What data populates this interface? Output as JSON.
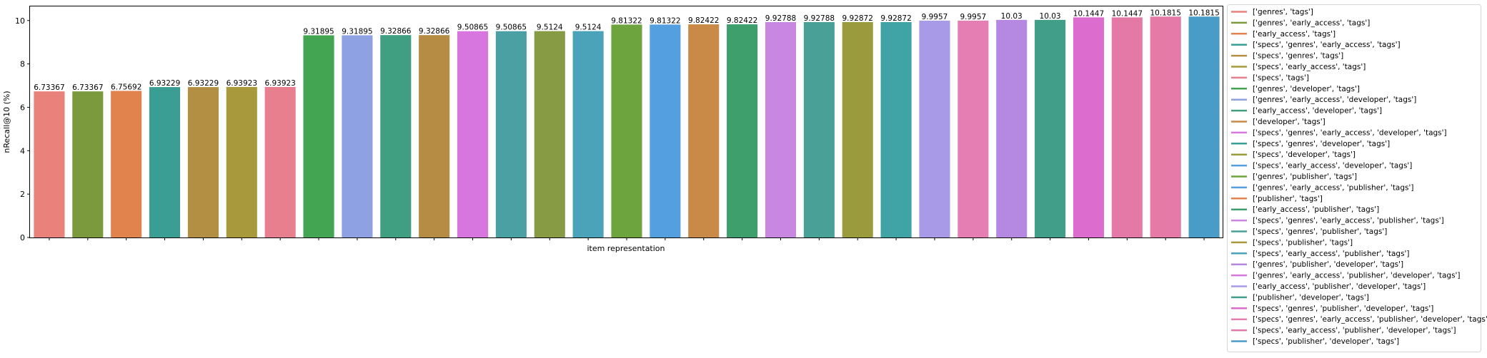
{
  "chart_data": {
    "type": "bar",
    "title": "",
    "xlabel": "item representation",
    "ylabel": "nRecall@10 (%)",
    "ylim": [
      0,
      10.65
    ],
    "yticks": [
      0,
      2,
      4,
      6,
      8,
      10
    ],
    "grid": false,
    "legend_position": "right, outside plot",
    "categories": [
      "['genres', 'tags']",
      "['genres', 'early_access', 'tags']",
      "['early_access', 'tags']",
      "['specs', 'genres', 'early_access', 'tags']",
      "['specs', 'genres', 'tags']",
      "['specs', 'early_access', 'tags']",
      "['specs', 'tags']",
      "['genres', 'developer', 'tags']",
      "['genres', 'early_access', 'developer', 'tags']",
      "['early_access', 'developer', 'tags']",
      "['developer', 'tags']",
      "['specs', 'genres', 'early_access', 'developer', 'tags']",
      "['specs', 'genres', 'developer', 'tags']",
      "['specs', 'developer', 'tags']",
      "['specs', 'early_access', 'developer', 'tags']",
      "['genres', 'publisher', 'tags']",
      "['genres', 'early_access', 'publisher', 'tags']",
      "['publisher', 'tags']",
      "['early_access', 'publisher', 'tags']",
      "['specs', 'genres', 'early_access', 'publisher', 'tags']",
      "['specs', 'genres', 'publisher', 'tags']",
      "['specs', 'publisher', 'tags']",
      "['specs', 'early_access', 'publisher', 'tags']",
      "['genres', 'publisher', 'developer', 'tags']",
      "['genres', 'early_access', 'publisher', 'developer', 'tags']",
      "['early_access', 'publisher', 'developer', 'tags']",
      "['publisher', 'developer', 'tags']",
      "['specs', 'genres', 'publisher', 'developer', 'tags']",
      "['specs', 'genres', 'early_access', 'publisher', 'developer', 'tags']",
      "['specs', 'early_access', 'publisher', 'developer', 'tags']",
      "['specs', 'publisher', 'developer', 'tags']"
    ],
    "values": [
      6.73367,
      6.73367,
      6.75692,
      6.93229,
      6.93229,
      6.93923,
      6.93923,
      9.31895,
      9.31895,
      9.32866,
      9.32866,
      9.50865,
      9.50865,
      9.5124,
      9.5124,
      9.81322,
      9.81322,
      9.82422,
      9.82422,
      9.92788,
      9.92788,
      9.92872,
      9.92872,
      9.9957,
      9.9957,
      10.03,
      10.03,
      10.1447,
      10.1447,
      10.1815,
      10.1815
    ],
    "data_labels": [
      "6.73367",
      "6.73367",
      "6.75692",
      "6.93229",
      "6.93229",
      "6.93923",
      "6.93923",
      "9.31895",
      "9.31895",
      "9.32866",
      "9.32866",
      "9.50865",
      "9.50865",
      "9.5124",
      "9.5124",
      "9.81322",
      "9.81322",
      "9.82422",
      "9.82422",
      "9.92788",
      "9.92788",
      "9.92872",
      "9.92872",
      "9.9957",
      "9.9957",
      "10.03",
      "10.03",
      "10.1447",
      "10.1447",
      "10.1815",
      "10.1815"
    ],
    "bar_colors": [
      "#e8827b",
      "#7b9a3d",
      "#e0834d",
      "#3a9e94",
      "#b28f42",
      "#a89a3c",
      "#e87f8f",
      "#43a452",
      "#8da1e3",
      "#3f9f80",
      "#b68c44",
      "#d876e0",
      "#4aa0a3",
      "#879b44",
      "#4aa3b8",
      "#6ea43d",
      "#549fe0",
      "#c98a47",
      "#3e9e6c",
      "#c887e0",
      "#48a097",
      "#9a9b3d",
      "#40a3a5",
      "#a99ae8",
      "#e57eb2",
      "#b589e2",
      "#409e89",
      "#dd6ccf",
      "#e479a8",
      "#e57aa7",
      "#4a9cc8"
    ],
    "legend_colors": [
      "#e8827b",
      "#7b9a3d",
      "#e0834d",
      "#3a9e94",
      "#b28f42",
      "#a89a3c",
      "#e87f8f",
      "#43a452",
      "#8da1e3",
      "#3f9f80",
      "#c98a47",
      "#d876e0",
      "#3a9e94",
      "#9a9b3d",
      "#549fe0",
      "#6ea43d",
      "#549fe0",
      "#e0834d",
      "#3e9e6c",
      "#c887e0",
      "#48a097",
      "#a89a3c",
      "#4aa3b8",
      "#b589e2",
      "#d876e0",
      "#a99ae8",
      "#409e89",
      "#dd6ccf",
      "#e57eb2",
      "#e479a8",
      "#4a9cc8"
    ]
  }
}
